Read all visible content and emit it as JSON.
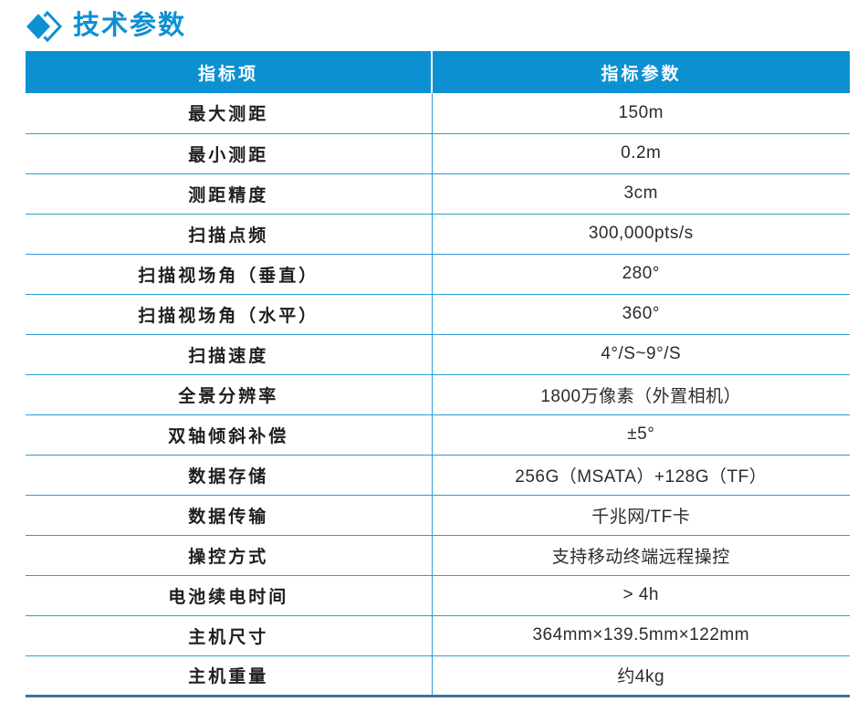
{
  "colors": {
    "azure": "#0d90d2",
    "divider": "#2e9bd6",
    "bottom_border": "#3a74a4",
    "header_text": "#ffffff",
    "label_text": "#1f1f1f",
    "value_text": "#2b2b2b"
  },
  "title": {
    "text": "技术参数"
  },
  "table": {
    "headers": [
      "指标项",
      "指标参数"
    ],
    "rows": [
      {
        "label": "最大测距",
        "value": "150m"
      },
      {
        "label": "最小测距",
        "value": "0.2m"
      },
      {
        "label": "测距精度",
        "value": "3cm"
      },
      {
        "label": "扫描点频",
        "value": "300,000pts/s"
      },
      {
        "label": "扫描视场角（垂直）",
        "value": "280°"
      },
      {
        "label": "扫描视场角（水平）",
        "value": "360°"
      },
      {
        "label": "扫描速度",
        "value": "4°/S~9°/S"
      },
      {
        "label": "全景分辨率",
        "value": "1800万像素（外置相机）"
      },
      {
        "label": "双轴倾斜补偿",
        "value": "±5°"
      },
      {
        "label": "数据存储",
        "value": "256G（MSATA）+128G（TF）"
      },
      {
        "label": "数据传输",
        "value": "千兆网/TF卡"
      },
      {
        "label": "操控方式",
        "value": "支持移动终端远程操控"
      },
      {
        "label": "电池续电时间",
        "value": "> 4h"
      },
      {
        "label": "主机尺寸",
        "value": "364mm×139.5mm×122mm"
      },
      {
        "label": "主机重量",
        "value": "约4kg"
      }
    ]
  }
}
